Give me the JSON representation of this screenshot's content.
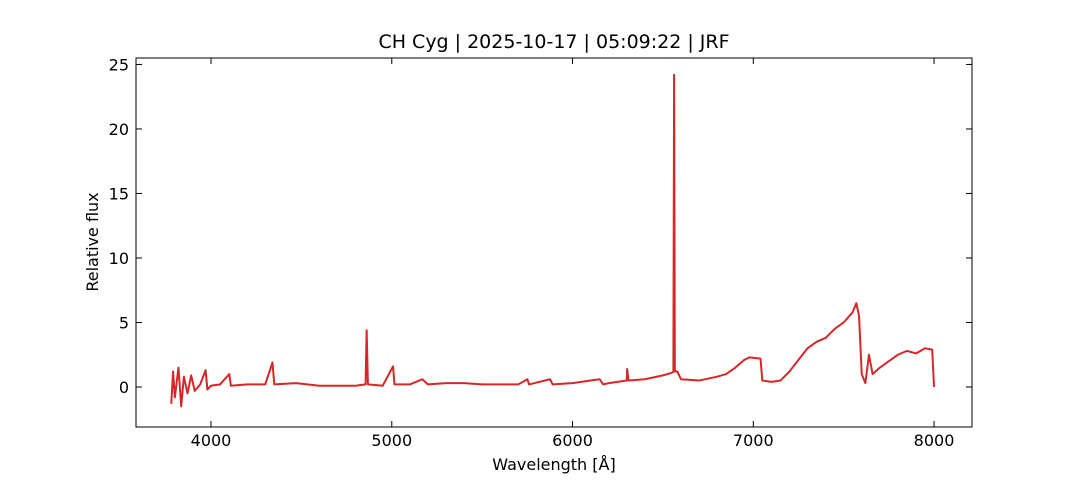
{
  "chart_data": {
    "type": "line",
    "title": "CH Cyg | 2025-10-17 | 05:09:22 | JRF",
    "xlabel": "Wavelength [Å]",
    "ylabel": "Relative flux",
    "x": [
      3780,
      3790,
      3800,
      3820,
      3835,
      3850,
      3870,
      3890,
      3910,
      3940,
      3970,
      3980,
      4000,
      4050,
      4101,
      4110,
      4200,
      4300,
      4340,
      4350,
      4471,
      4600,
      4700,
      4800,
      4855,
      4861,
      4868,
      4950,
      5007,
      5015,
      5100,
      5169,
      5200,
      5300,
      5400,
      5500,
      5600,
      5700,
      5750,
      5760,
      5876,
      5890,
      6000,
      6100,
      6150,
      6170,
      6200,
      6300,
      6302,
      6310,
      6400,
      6500,
      6550,
      6558,
      6562,
      6566,
      6580,
      6600,
      6700,
      6800,
      6850,
      6900,
      6950,
      6980,
      7040,
      7050,
      7100,
      7150,
      7200,
      7250,
      7300,
      7350,
      7400,
      7450,
      7500,
      7550,
      7570,
      7585,
      7600,
      7620,
      7640,
      7660,
      7700,
      7750,
      7800,
      7850,
      7900,
      7950,
      7990,
      8000
    ],
    "series": [
      {
        "name": "CH Cyg",
        "color": "#d62728",
        "values": [
          -1.3,
          1.2,
          -0.8,
          1.5,
          -1.5,
          0.8,
          -0.5,
          0.9,
          -0.3,
          0.2,
          1.3,
          -0.2,
          0.1,
          0.2,
          1.0,
          0.1,
          0.2,
          0.2,
          1.9,
          0.2,
          0.3,
          0.1,
          0.1,
          0.1,
          0.2,
          4.4,
          0.2,
          0.1,
          1.6,
          0.2,
          0.2,
          0.6,
          0.2,
          0.3,
          0.3,
          0.2,
          0.2,
          0.2,
          0.6,
          0.2,
          0.6,
          0.2,
          0.3,
          0.5,
          0.6,
          0.2,
          0.3,
          0.5,
          1.4,
          0.5,
          0.6,
          0.9,
          1.1,
          1.2,
          24.2,
          1.2,
          1.2,
          0.6,
          0.5,
          0.8,
          1.0,
          1.5,
          2.1,
          2.3,
          2.2,
          0.5,
          0.4,
          0.5,
          1.2,
          2.1,
          3.0,
          3.5,
          3.8,
          4.5,
          5.0,
          5.8,
          6.5,
          5.5,
          1.0,
          0.3,
          2.5,
          1.0,
          1.5,
          2.0,
          2.5,
          2.8,
          2.6,
          3.0,
          2.9,
          0.0
        ]
      }
    ],
    "xlim": [
      3585,
      8210
    ],
    "xticks": [
      4000,
      5000,
      6000,
      7000,
      8000
    ],
    "ylim": [
      -3.1,
      25.5
    ],
    "yticks": [
      0,
      5,
      10,
      15,
      20,
      25
    ],
    "grid": false
  }
}
